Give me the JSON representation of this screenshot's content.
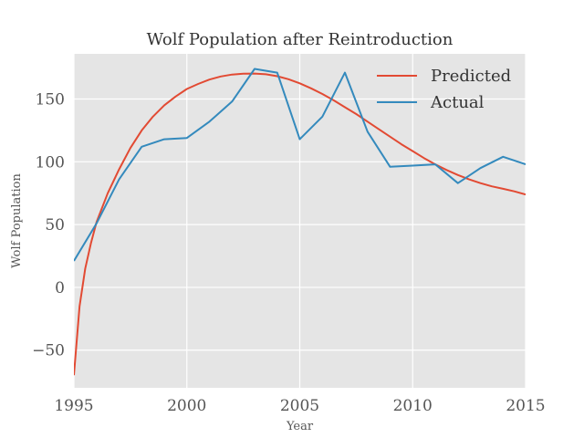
{
  "chart_data": {
    "type": "line",
    "title": "Wolf Population after Reintroduction",
    "xlabel": "Year",
    "ylabel": "Wolf Population",
    "xlim": [
      1995,
      2015
    ],
    "ylim": [
      -80,
      186
    ],
    "xticks": [
      1995,
      2000,
      2005,
      2010,
      2015
    ],
    "yticks": [
      -50,
      0,
      50,
      100,
      150
    ],
    "ytick_labels": [
      "−50",
      "0",
      "50",
      "100",
      "150"
    ],
    "grid": true,
    "legend_position": "top-right",
    "colors": {
      "background": "#e5e5e5",
      "grid": "#ffffff",
      "predicted": "#e24a33",
      "actual": "#348abd"
    },
    "series": [
      {
        "name": "Predicted",
        "x": [
          1995,
          1995.25,
          1995.5,
          1995.75,
          1996,
          1996.5,
          1997,
          1997.5,
          1998,
          1998.5,
          1999,
          1999.5,
          2000,
          2000.5,
          2001,
          2001.5,
          2002,
          2002.5,
          2003,
          2003.5,
          2004,
          2004.5,
          2005,
          2005.5,
          2006,
          2006.5,
          2007,
          2007.5,
          2008,
          2008.5,
          2009,
          2009.5,
          2010,
          2010.5,
          2011,
          2011.5,
          2012,
          2012.5,
          2013,
          2013.5,
          2014,
          2014.5,
          2015
        ],
        "y": [
          -70,
          -15,
          15,
          35,
          52,
          75,
          94,
          111,
          125,
          136,
          145,
          152,
          158,
          162,
          165.5,
          168,
          169.5,
          170.2,
          170.3,
          169.7,
          168.2,
          165.8,
          162.5,
          158.5,
          154,
          149,
          143.5,
          138,
          132,
          126,
          120,
          114,
          108.5,
          103,
          98,
          93.5,
          89.5,
          86,
          83,
          80.5,
          78.5,
          76.5,
          74
        ]
      },
      {
        "name": "Actual",
        "x": [
          1995,
          1996,
          1997,
          1998,
          1999,
          2000,
          2001,
          2002,
          2003,
          2004,
          2005,
          2006,
          2007,
          2008,
          2009,
          2010,
          2011,
          2012,
          2013,
          2014,
          2015
        ],
        "y": [
          21,
          51,
          86,
          112,
          118,
          119,
          132,
          148,
          174,
          171,
          118,
          136,
          171,
          124,
          96,
          97,
          98,
          83,
          95,
          104,
          98
        ]
      }
    ]
  }
}
